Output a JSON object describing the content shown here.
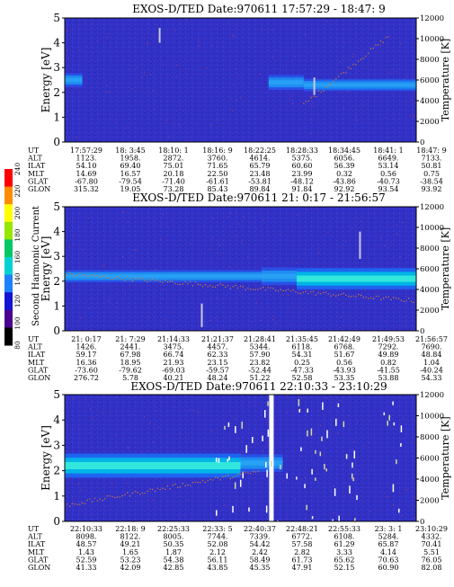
{
  "chart_data": [
    {
      "type": "heatmap",
      "title": "EXOS-D/TED   Date:970611  17:57:29 - 18:47: 9",
      "ylabel": "Energy [eV]",
      "y2label": "Temperature [K]",
      "ylim": [
        0,
        5
      ],
      "y2lim": [
        0,
        12000
      ],
      "yticks": [
        "0",
        "1",
        "2",
        "3",
        "4",
        "5"
      ],
      "y2ticks": [
        "0",
        "2000",
        "4000",
        "6000",
        "8000",
        "10000",
        "12000"
      ],
      "ephemeris_labels": [
        "UT",
        "ALT",
        "ILAT",
        "MLT",
        "GLAT",
        "GLON"
      ],
      "ephemeris": [
        [
          "17:57:29",
          "1123.",
          "54.10",
          "14.69",
          "-67.80",
          "315.32"
        ],
        [
          "18: 3:45",
          "1958.",
          "69.40",
          "16.57",
          "-79.54",
          "19.05"
        ],
        [
          "18:10: 1",
          "2872.",
          "75.01",
          "20.18",
          "-71.40",
          "73.28"
        ],
        [
          "18:16: 9",
          "3760.",
          "71.65",
          "22.50",
          "-61.61",
          "85.43"
        ],
        [
          "18:22:25",
          "4614.",
          "65.79",
          "23.48",
          "-53.81",
          "89.84"
        ],
        [
          "18:28:33",
          "5375.",
          "60.60",
          "23.99",
          "-48.12",
          "91.84"
        ],
        [
          "18:34:45",
          "6056.",
          "56.39",
          "0.32",
          "-43.86",
          "92.92"
        ],
        [
          "18:41: 1",
          "6649.",
          "53.14",
          "0.56",
          "-40.73",
          "93.54"
        ],
        [
          "18:47: 9",
          "7133.",
          "50.81",
          "0.75",
          "-38.54",
          "93.92"
        ]
      ],
      "bands": [
        {
          "t0": 0.0,
          "t1": 0.05,
          "energy": 2.5,
          "width": 0.55,
          "level": 0.35
        },
        {
          "t0": 0.58,
          "t1": 0.68,
          "energy": 2.4,
          "width": 0.6,
          "level": 0.3
        },
        {
          "t0": 0.68,
          "t1": 0.72,
          "energy": 2.3,
          "width": 0.5,
          "level": 0.4
        },
        {
          "t0": 0.72,
          "t1": 1.0,
          "energy": 2.3,
          "width": 0.45,
          "level": 0.55
        }
      ],
      "spikes": [
        {
          "t": 0.27,
          "e0": 4.0,
          "e1": 4.6
        },
        {
          "t": 0.71,
          "e0": 1.9,
          "e1": 2.6
        }
      ],
      "temperature": {
        "t0": 0.68,
        "t1": 0.92,
        "k0": 3600,
        "k1": 10200,
        "color": "#d27a3a"
      }
    },
    {
      "type": "heatmap",
      "title": "EXOS-D/TED   Date:970611  21: 0:17 - 21:56:57",
      "ylabel": "Energy [eV]",
      "y2label": "Temperature [K]",
      "ylim": [
        0,
        5
      ],
      "y2lim": [
        0,
        12000
      ],
      "yticks": [
        "0",
        "1",
        "2",
        "3",
        "4",
        "5"
      ],
      "y2ticks": [
        "0",
        "2000",
        "4000",
        "6000",
        "8000",
        "10000",
        "12000"
      ],
      "ephemeris_labels": [
        "UT",
        "ALT",
        "ILAT",
        "MLT",
        "GLAT",
        "GLON"
      ],
      "ephemeris": [
        [
          "21: 0:17",
          "1426.",
          "59.17",
          "16.36",
          "-73.60",
          "276.72"
        ],
        [
          "21: 7:29",
          "2441.",
          "67.98",
          "18.95",
          "-79.62",
          "5.78"
        ],
        [
          "21:14:33",
          "3475.",
          "66.74",
          "21.93",
          "-69.03",
          "40.21"
        ],
        [
          "21:21:37",
          "4457.",
          "62.33",
          "23.15",
          "-59.57",
          "48.24"
        ],
        [
          "21:28:41",
          "5344.",
          "57.90",
          "23.82",
          "-52.44",
          "51.22"
        ],
        [
          "21:35:45",
          "6118.",
          "54.31",
          "0.25",
          "-47.33",
          "52.58"
        ],
        [
          "21:42:49",
          "6768.",
          "51.67",
          "0.56",
          "-43.93",
          "53.35"
        ],
        [
          "21:49:53",
          "7292.",
          "49.89",
          "0.82",
          "-41.55",
          "53.88"
        ],
        [
          "21:56:57",
          "7690.",
          "48.84",
          "1.04",
          "-40.24",
          "54.33"
        ]
      ],
      "bands": [
        {
          "t0": 0.0,
          "t1": 0.56,
          "energy": 2.2,
          "width": 0.5,
          "level": 0.28
        },
        {
          "t0": 0.56,
          "t1": 0.66,
          "energy": 2.2,
          "width": 0.7,
          "level": 0.38
        },
        {
          "t0": 0.66,
          "t1": 1.0,
          "energy": 2.1,
          "width": 0.85,
          "level": 0.72
        }
      ],
      "spikes": [
        {
          "t": 0.39,
          "e0": 0.15,
          "e1": 1.1
        },
        {
          "t": 0.84,
          "e0": 2.9,
          "e1": 4.0
        }
      ],
      "temperature": {
        "t0": 0.0,
        "t1": 1.0,
        "k0": 5500,
        "k1": 2900,
        "color": "#d27a3a"
      },
      "colorbar": {
        "label": "Second Harmonic Current",
        "ticks": [
          "80",
          "100",
          "120",
          "140",
          "160",
          "180",
          "200",
          "220",
          "240"
        ],
        "colors": [
          "#000000",
          "#4a0090",
          "#1414d2",
          "#1e82ff",
          "#00d2d2",
          "#00c864",
          "#96e600",
          "#ffff00",
          "#ff8c00",
          "#ff0000"
        ]
      }
    },
    {
      "type": "heatmap",
      "title": "EXOS-D/TED   Date:970611  22:10:33 - 23:10:29",
      "ylabel": "Energy [eV]",
      "y2label": "Temperature [K]",
      "ylim": [
        0,
        5
      ],
      "y2lim": [
        0,
        12000
      ],
      "yticks": [
        "0",
        "1",
        "2",
        "3",
        "4",
        "5"
      ],
      "y2ticks": [
        "0",
        "2000",
        "4000",
        "6000",
        "8000",
        "10000",
        "12000"
      ],
      "ephemeris_labels": [
        "UT",
        "ALT",
        "ILAT",
        "MLT",
        "GLAT",
        "GLON"
      ],
      "ephemeris": [
        [
          "22:10:33",
          "8098.",
          "48.57",
          "1.43",
          "52.59",
          "41.33"
        ],
        [
          "22:18: 9",
          "8122.",
          "49.21",
          "1.65",
          "53.23",
          "42.09"
        ],
        [
          "22:25:33",
          "8005.",
          "50.35",
          "1.87",
          "54.38",
          "42.85"
        ],
        [
          "22:33: 5",
          "7744.",
          "52.08",
          "2.12",
          "56.11",
          "43.85"
        ],
        [
          "22:40:37",
          "7339.",
          "54.42",
          "2.42",
          "58.49",
          "45.35"
        ],
        [
          "22:48:21",
          "6772.",
          "57.58",
          "2.82",
          "61.73",
          "47.91"
        ],
        [
          "22:55:33",
          "6108.",
          "61.29",
          "3.33",
          "65.62",
          "52.15"
        ],
        [
          "23: 3: 1",
          "5284.",
          "65.87",
          "4.14",
          "70.63",
          "60.90"
        ],
        [
          "23:10:29",
          "4332.",
          "70.41",
          "5.51",
          "76.05",
          "82.08"
        ]
      ],
      "bands": [
        {
          "t0": 0.0,
          "t1": 0.5,
          "energy": 2.2,
          "width": 0.95,
          "level": 0.7
        },
        {
          "t0": 0.5,
          "t1": 0.62,
          "energy": 2.3,
          "width": 0.7,
          "level": 0.45
        }
      ],
      "spikes": [
        {
          "t": 0.588,
          "e0": 0.0,
          "e1": 5.0
        }
      ],
      "temperature": {
        "t0": 0.0,
        "t1": 0.55,
        "k0": 1500,
        "k1": 4700,
        "color": "#d27a3a"
      }
    }
  ]
}
